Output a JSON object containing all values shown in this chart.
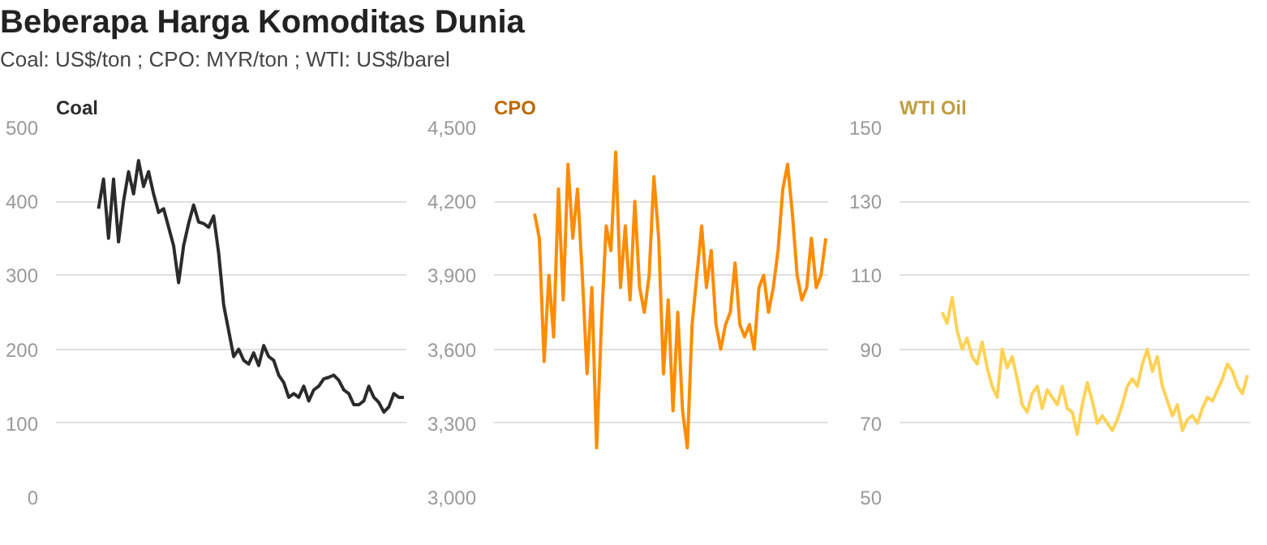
{
  "chart_data": [
    {
      "type": "line",
      "title": "Coal",
      "annotations": [
        "Beberapa Harga Komoditas Dunia",
        "Coal: US$/ton ; CPO: MYR/ton ; WTI: US$/barel"
      ],
      "categories": [
        null,
        null,
        null,
        null,
        null,
        null,
        null,
        null,
        null,
        null,
        null,
        null,
        null,
        null,
        null,
        null,
        null,
        null,
        null,
        null,
        null,
        null,
        null,
        null,
        null,
        null,
        null,
        null,
        null,
        null,
        null,
        null,
        null,
        null,
        null,
        null,
        null,
        null,
        null,
        null,
        null,
        null,
        null,
        null,
        null,
        null,
        null,
        null,
        null,
        null,
        null,
        null,
        null,
        null,
        null,
        null,
        null,
        null,
        null,
        null,
        null,
        null,
        null,
        null,
        null,
        null,
        null,
        null,
        null,
        null
      ],
      "ylim": [
        0,
        500
      ],
      "yticks": [
        0,
        100,
        200,
        300,
        400,
        500
      ],
      "grid": "y",
      "tick_labels": "y",
      "series": [
        {
          "color": "#2b2b2b",
          "values": [
            null,
            null,
            null,
            null,
            null,
            null,
            null,
            null,
            390,
            430,
            350,
            430,
            345,
            400,
            440,
            410,
            455,
            420,
            440,
            410,
            385,
            390,
            365,
            340,
            290,
            340,
            370,
            395,
            372,
            370,
            365,
            380,
            330,
            260,
            225,
            190,
            200,
            185,
            180,
            195,
            178,
            205,
            190,
            185,
            165,
            155,
            135,
            140,
            135,
            150,
            130,
            145,
            150,
            160,
            162,
            165,
            158,
            145,
            140,
            125,
            125,
            130,
            150,
            135,
            128,
            115,
            122,
            140,
            135,
            135
          ]
        }
      ]
    },
    {
      "type": "line",
      "title": "CPO",
      "categories": [
        null,
        null,
        null,
        null,
        null,
        null,
        null,
        null,
        null,
        null,
        null,
        null,
        null,
        null,
        null,
        null,
        null,
        null,
        null,
        null,
        null,
        null,
        null,
        null,
        null,
        null,
        null,
        null,
        null,
        null,
        null,
        null,
        null,
        null,
        null,
        null,
        null,
        null,
        null,
        null,
        null,
        null,
        null,
        null,
        null,
        null,
        null,
        null,
        null,
        null,
        null,
        null,
        null,
        null,
        null,
        null,
        null,
        null,
        null,
        null,
        null,
        null,
        null,
        null,
        null,
        null,
        null,
        null,
        null,
        null
      ],
      "ylim": [
        3000,
        4500
      ],
      "yticks": [
        {
          "value": 3000,
          "label": "3,000"
        },
        {
          "value": 3300,
          "label": "3,300"
        },
        {
          "value": 3600,
          "label": "3,600"
        },
        {
          "value": 3900,
          "label": "3,900"
        },
        {
          "value": 4200,
          "label": "4,200"
        },
        {
          "value": 4500,
          "label": "4,500"
        }
      ],
      "grid": "y",
      "tick_labels": "y",
      "series": [
        {
          "color": "#ff8c00",
          "values": [
            null,
            null,
            null,
            null,
            null,
            null,
            null,
            null,
            4150,
            4050,
            3550,
            3900,
            3650,
            4250,
            3800,
            4350,
            4050,
            4250,
            3900,
            3500,
            3850,
            3200,
            3700,
            4100,
            4000,
            4400,
            3850,
            4100,
            3800,
            4200,
            3850,
            3750,
            3900,
            4300,
            4050,
            3500,
            3800,
            3350,
            3750,
            3350,
            3200,
            3700,
            3900,
            4100,
            3850,
            4000,
            3700,
            3600,
            3700,
            3750,
            3950,
            3700,
            3650,
            3700,
            3600,
            3850,
            3900,
            3750,
            3850,
            4000,
            4250,
            4350,
            4150,
            3900,
            3800,
            3850,
            4050,
            3850,
            3900,
            4050
          ]
        }
      ]
    },
    {
      "type": "line",
      "title": "WTI Oil",
      "categories": [
        null,
        null,
        null,
        null,
        null,
        null,
        null,
        null,
        null,
        null,
        null,
        null,
        null,
        null,
        null,
        null,
        null,
        null,
        null,
        null,
        null,
        null,
        null,
        null,
        null,
        null,
        null,
        null,
        null,
        null,
        null,
        null,
        null,
        null,
        null,
        null,
        null,
        null,
        null,
        null,
        null,
        null,
        null,
        null,
        null,
        null,
        null,
        null,
        null,
        null,
        null,
        null,
        null,
        null,
        null,
        null,
        null,
        null,
        null,
        null,
        null,
        null,
        null,
        null,
        null,
        null,
        null,
        null,
        null,
        null
      ],
      "ylim": [
        50,
        150
      ],
      "yticks": [
        50,
        70,
        90,
        110,
        130,
        150
      ],
      "grid": "y",
      "tick_labels": "y",
      "series": [
        {
          "color": "#ffd257",
          "values": [
            null,
            null,
            null,
            null,
            null,
            null,
            null,
            null,
            100,
            97,
            104,
            95,
            90,
            93,
            88,
            86,
            92,
            85,
            80,
            77,
            90,
            85,
            88,
            82,
            75,
            73,
            78,
            80,
            74,
            79,
            77,
            75,
            80,
            74,
            73,
            67,
            75,
            81,
            76,
            70,
            72,
            70,
            68,
            71,
            75,
            80,
            82,
            80,
            86,
            90,
            84,
            88,
            80,
            76,
            72,
            75,
            68,
            71,
            72,
            70,
            74,
            77,
            76,
            79,
            82,
            86,
            84,
            80,
            78,
            83
          ]
        }
      ]
    }
  ]
}
